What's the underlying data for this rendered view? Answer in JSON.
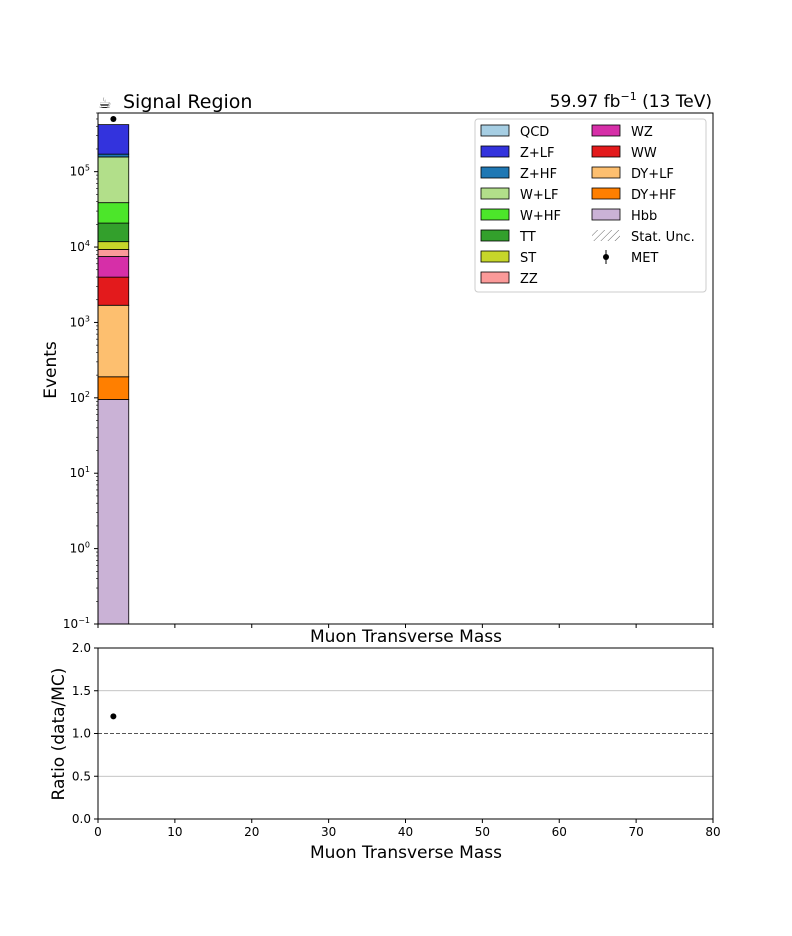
{
  "header": {
    "icon": "coffee-cup-icon",
    "region_title": "Signal Region",
    "lumi_value": "59.97 fb",
    "lumi_exp": "−1",
    "energy": "(13 TeV)"
  },
  "chart_data": [
    {
      "type": "bar",
      "subtype": "stacked-histogram",
      "ylabel": "Events",
      "xlabel": "Muon Transverse Mass",
      "yscale": "log",
      "ylim": [
        0.1,
        600000
      ],
      "xlim": [
        0,
        80
      ],
      "yticks": [
        {
          "base": "10",
          "exp": "−1",
          "value": 0.1
        },
        {
          "base": "10",
          "exp": "0",
          "value": 1
        },
        {
          "base": "10",
          "exp": "1",
          "value": 10
        },
        {
          "base": "10",
          "exp": "2",
          "value": 100
        },
        {
          "base": "10",
          "exp": "3",
          "value": 1000
        },
        {
          "base": "10",
          "exp": "4",
          "value": 10000
        },
        {
          "base": "10",
          "exp": "5",
          "value": 100000
        }
      ],
      "bin": [
        0,
        4
      ],
      "series": [
        {
          "name": "Hbb",
          "color": "#cab2d6",
          "value": 95
        },
        {
          "name": "DY+HF",
          "color": "#ff7f00",
          "value": 95
        },
        {
          "name": "DY+LF",
          "color": "#fdbf6f",
          "value": 1500
        },
        {
          "name": "WW",
          "color": "#e31a1c",
          "value": 2300
        },
        {
          "name": "WZ",
          "color": "#d62fa8",
          "value": 3500
        },
        {
          "name": "ZZ",
          "color": "#fb9a99",
          "value": 1800
        },
        {
          "name": "ST",
          "color": "#c6d62a",
          "value": 2500
        },
        {
          "name": "TT",
          "color": "#33a02c",
          "value": 9000
        },
        {
          "name": "W+HF",
          "color": "#4ce62a",
          "value": 18000
        },
        {
          "name": "W+LF",
          "color": "#b2df8a",
          "value": 118000
        },
        {
          "name": "Z+HF",
          "color": "#1f78b4",
          "value": 14000
        },
        {
          "name": "Z+LF",
          "color": "#3333dd",
          "value": 250000
        },
        {
          "name": "QCD",
          "color": "#a6cee3",
          "value": 0
        }
      ],
      "data_points": [
        {
          "name": "MET",
          "x": 2,
          "y": 500000
        }
      ],
      "legend": {
        "placement": "top-right",
        "columns": [
          [
            {
              "label": "QCD",
              "kind": "box",
              "color": "#a6cee3"
            },
            {
              "label": "Z+LF",
              "kind": "box",
              "color": "#3333dd"
            },
            {
              "label": "Z+HF",
              "kind": "box",
              "color": "#1f78b4"
            },
            {
              "label": "W+LF",
              "kind": "box",
              "color": "#b2df8a"
            },
            {
              "label": "W+HF",
              "kind": "box",
              "color": "#4ce62a"
            },
            {
              "label": "TT",
              "kind": "box",
              "color": "#33a02c"
            },
            {
              "label": "ST",
              "kind": "box",
              "color": "#c6d62a"
            },
            {
              "label": "ZZ",
              "kind": "box",
              "color": "#fb9a99"
            }
          ],
          [
            {
              "label": "WZ",
              "kind": "box",
              "color": "#d62fa8"
            },
            {
              "label": "WW",
              "kind": "box",
              "color": "#e31a1c"
            },
            {
              "label": "DY+LF",
              "kind": "box",
              "color": "#fdbf6f"
            },
            {
              "label": "DY+HF",
              "kind": "box",
              "color": "#ff7f00"
            },
            {
              "label": "Hbb",
              "kind": "box",
              "color": "#cab2d6"
            },
            {
              "label": "Stat. Unc.",
              "kind": "hatch",
              "color": "#555555"
            },
            {
              "label": "MET",
              "kind": "marker",
              "color": "#000000"
            }
          ]
        ]
      }
    },
    {
      "type": "scatter",
      "ylabel": "Ratio (data/MC)",
      "xlabel": "Muon Transverse Mass",
      "xlim": [
        0,
        80
      ],
      "ylim": [
        0,
        2
      ],
      "xticks": [
        "0",
        "10",
        "20",
        "30",
        "40",
        "50",
        "60",
        "70",
        "80"
      ],
      "yticks": [
        "0.0",
        "0.5",
        "1.0",
        "1.5",
        "2.0"
      ],
      "grid": true,
      "reference_line": 1.0,
      "points": [
        {
          "x": 2,
          "y": 1.2
        }
      ]
    }
  ]
}
